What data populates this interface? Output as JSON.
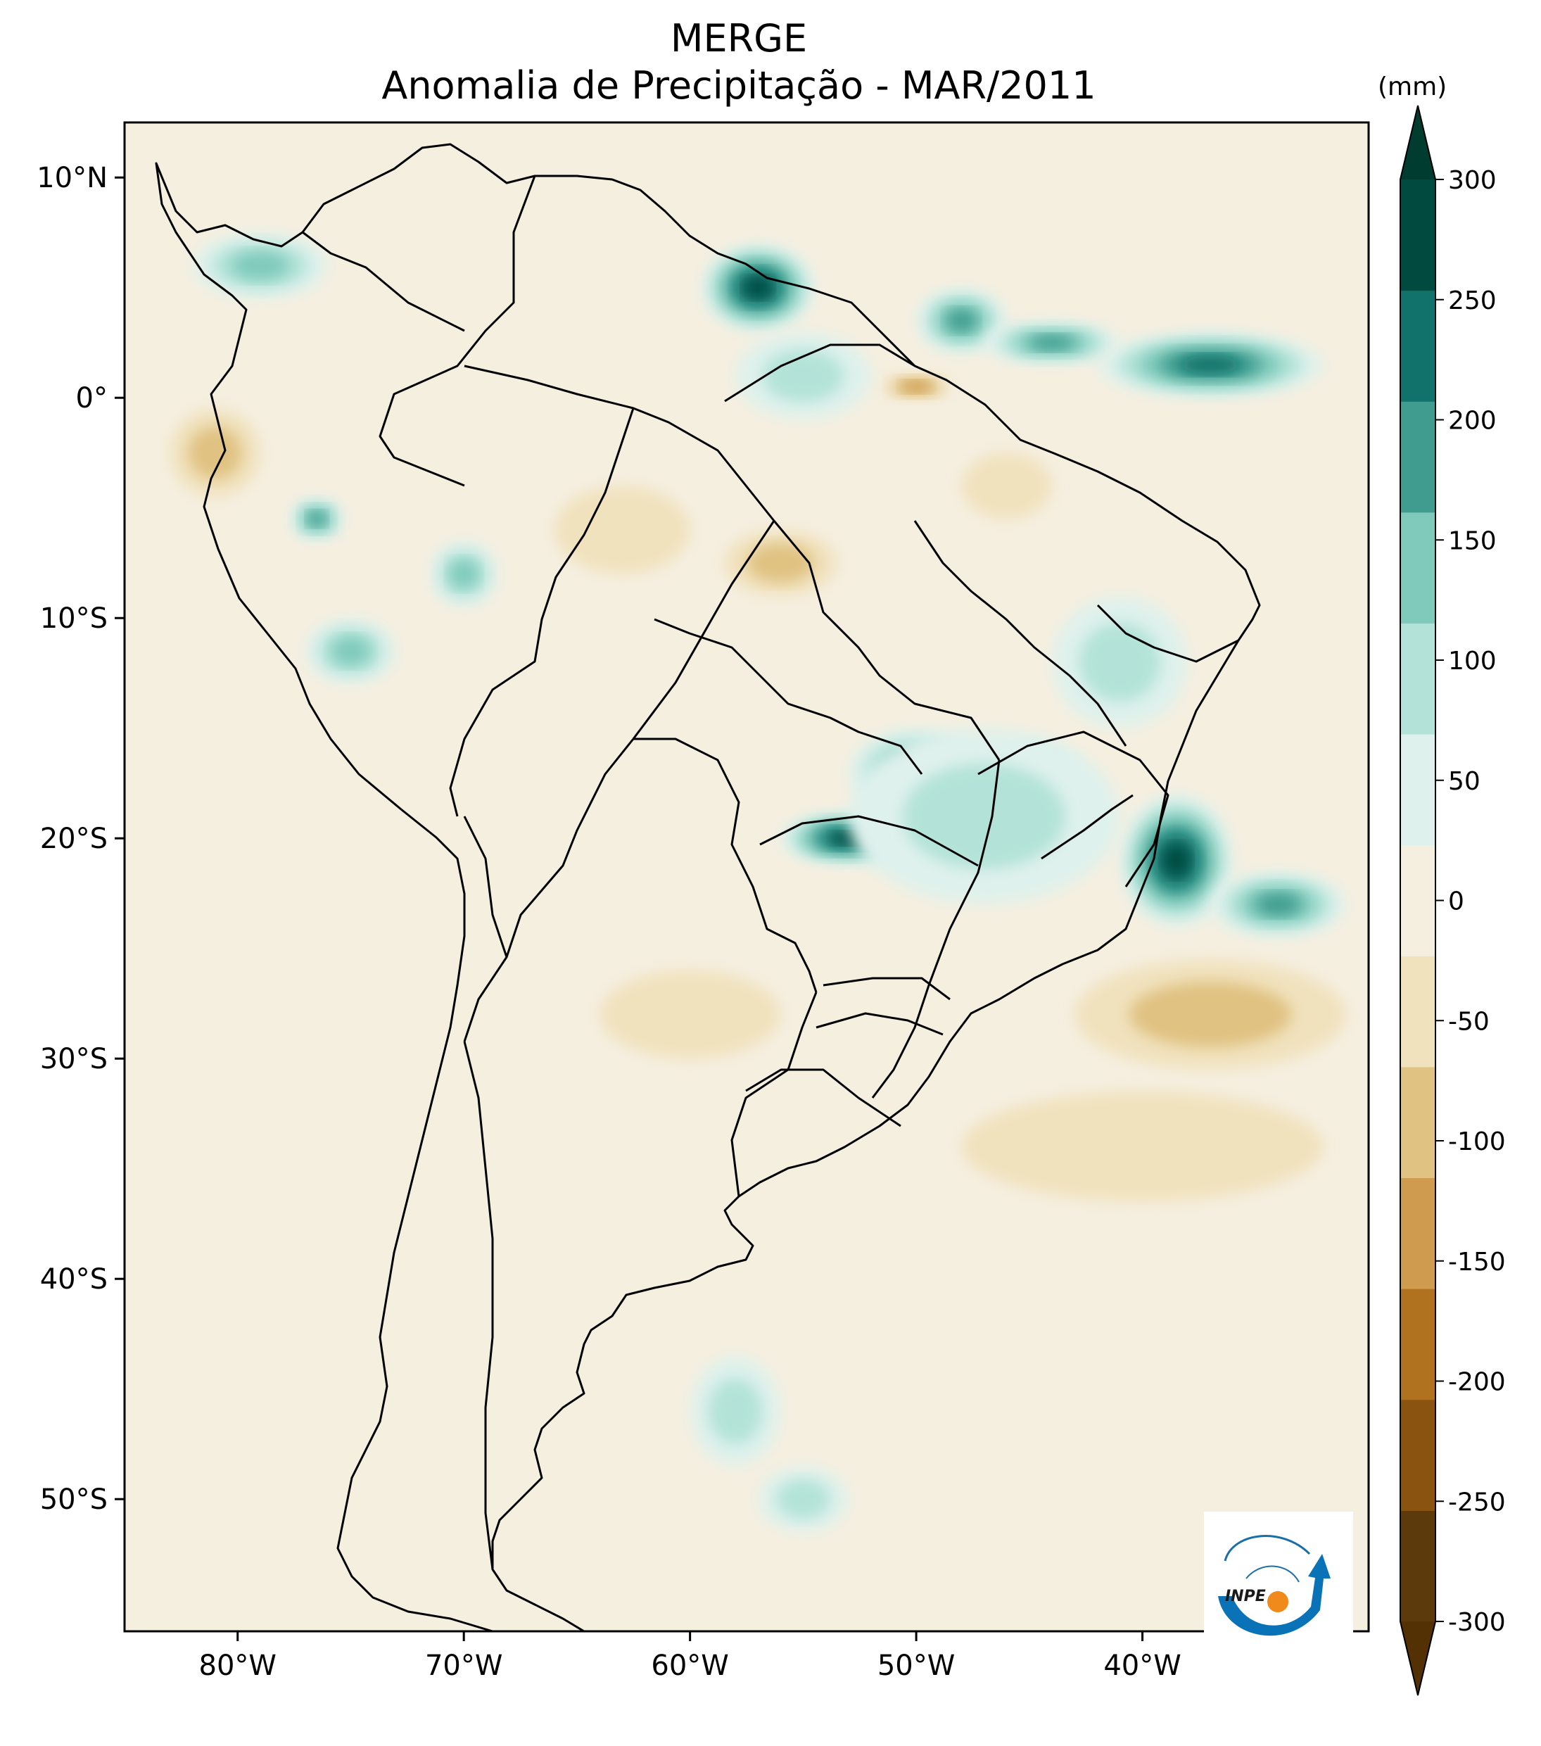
{
  "header": {
    "title": "MERGE",
    "subtitle": "Anomalia de Precipitação - MAR/2011"
  },
  "map": {
    "lon_range": [
      -85,
      -30
    ],
    "lat_range": [
      -56,
      12.5
    ],
    "lon_ticks": [
      {
        "value": -80,
        "label": "80°W"
      },
      {
        "value": -70,
        "label": "70°W"
      },
      {
        "value": -60,
        "label": "60°W"
      },
      {
        "value": -50,
        "label": "50°W"
      },
      {
        "value": -40,
        "label": "40°W"
      }
    ],
    "lat_ticks": [
      {
        "value": 10,
        "label": "10°N"
      },
      {
        "value": 0,
        "label": "0°"
      },
      {
        "value": -10,
        "label": "10°S"
      },
      {
        "value": -20,
        "label": "20°S"
      },
      {
        "value": -30,
        "label": "30°S"
      },
      {
        "value": -40,
        "label": "40°S"
      },
      {
        "value": -50,
        "label": "50°S"
      }
    ],
    "background_color": "#f5efe0",
    "anomaly_regions": [
      {
        "lon": -57,
        "lat": 5,
        "rx": 2.5,
        "ry": 2,
        "level": 6
      },
      {
        "lon": -48,
        "lat": 3.5,
        "rx": 2,
        "ry": 1.5,
        "level": 4
      },
      {
        "lon": -37,
        "lat": 1.5,
        "rx": 5,
        "ry": 1.5,
        "level": 5
      },
      {
        "lon": -44,
        "lat": 2.5,
        "rx": 3,
        "ry": 1,
        "level": 4
      },
      {
        "lon": -55,
        "lat": 1,
        "rx": 3,
        "ry": 2,
        "level": 2
      },
      {
        "lon": -38.5,
        "lat": -21,
        "rx": 2.5,
        "ry": 3,
        "level": 6
      },
      {
        "lon": -34,
        "lat": -23,
        "rx": 3,
        "ry": 1.5,
        "level": 4
      },
      {
        "lon": -53,
        "lat": -20,
        "rx": 3,
        "ry": 1.2,
        "level": 6
      },
      {
        "lon": -45,
        "lat": -18,
        "rx": 2.5,
        "ry": 2.5,
        "level": 5
      },
      {
        "lon": -50,
        "lat": -17,
        "rx": 3,
        "ry": 2,
        "level": 4
      },
      {
        "lon": -47,
        "lat": -19,
        "rx": 6,
        "ry": 4,
        "level": 2
      },
      {
        "lon": -41,
        "lat": -12,
        "rx": 3,
        "ry": 3,
        "level": 2
      },
      {
        "lon": -76.5,
        "lat": -5.5,
        "rx": 1.2,
        "ry": 1,
        "level": 4
      },
      {
        "lon": -75,
        "lat": -11.5,
        "rx": 2,
        "ry": 1.5,
        "level": 3
      },
      {
        "lon": -70,
        "lat": -8,
        "rx": 1.5,
        "ry": 1.5,
        "level": 3
      },
      {
        "lon": -79,
        "lat": 6,
        "rx": 3,
        "ry": 1.5,
        "level": 3
      },
      {
        "lon": -58,
        "lat": -46,
        "rx": 2,
        "ry": 2.5,
        "level": 2
      },
      {
        "lon": -55,
        "lat": -50,
        "rx": 2,
        "ry": 1.5,
        "level": 2
      },
      {
        "lon": -56,
        "lat": -7.5,
        "rx": 2.5,
        "ry": 1.5,
        "level": -2
      },
      {
        "lon": -50,
        "lat": 0.5,
        "rx": 1.5,
        "ry": 0.6,
        "level": -3
      },
      {
        "lon": -81,
        "lat": -2.5,
        "rx": 2,
        "ry": 2,
        "level": -2
      },
      {
        "lon": -37,
        "lat": -28,
        "rx": 6,
        "ry": 2.5,
        "level": -2
      },
      {
        "lon": -40,
        "lat": -34,
        "rx": 8,
        "ry": 2.5,
        "level": -1
      },
      {
        "lon": -60,
        "lat": -28,
        "rx": 4,
        "ry": 2,
        "level": -1
      },
      {
        "lon": -63,
        "lat": -6,
        "rx": 3,
        "ry": 2,
        "level": -1
      },
      {
        "lon": -46,
        "lat": -4,
        "rx": 2,
        "ry": 1.5,
        "level": -1
      }
    ],
    "outline_color": "#000000"
  },
  "colorbar": {
    "unit": "(mm)",
    "levels": [
      -300,
      -250,
      -200,
      -150,
      -100,
      -50,
      0,
      50,
      100,
      150,
      200,
      250,
      300
    ],
    "labels": [
      "-300",
      "-250",
      "-200",
      "-150",
      "-100",
      "-50",
      "0",
      "50",
      "100",
      "150",
      "200",
      "250",
      "300"
    ],
    "colors": [
      "#5c3a0c",
      "#8a530f",
      "#b0721e",
      "#cf9b4f",
      "#e0c282",
      "#f1e2be",
      "#f5efe0",
      "#dff1ec",
      "#b3e3d8",
      "#7fcabb",
      "#3f9c8f",
      "#10726b",
      "#014a40"
    ],
    "over_color": "#003c30",
    "under_color": "#543005"
  },
  "logo": {
    "text": "INPE"
  }
}
